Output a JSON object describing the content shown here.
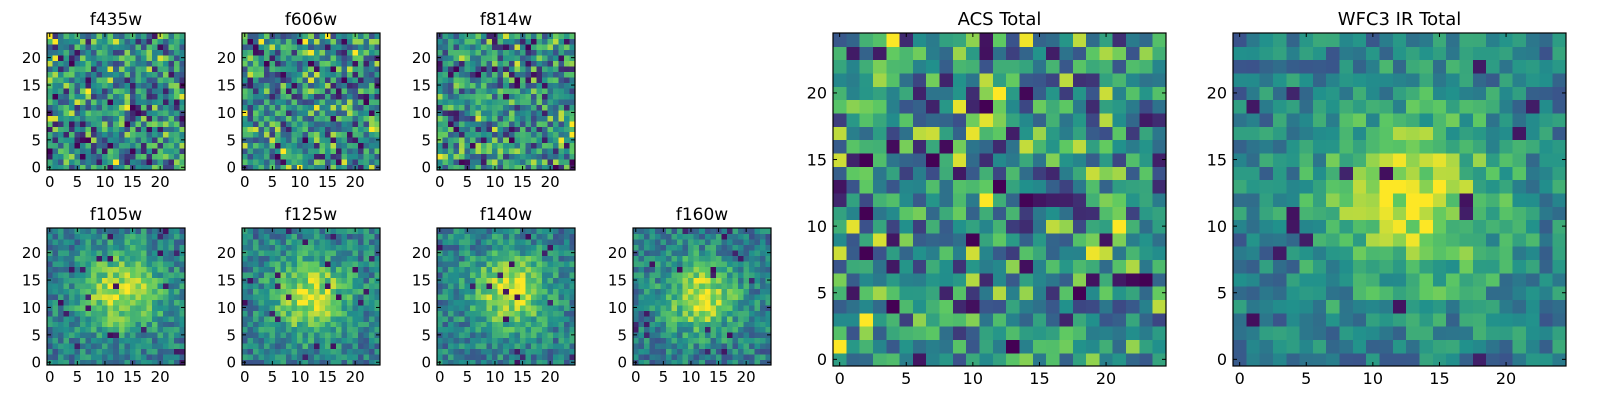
{
  "palette": [
    "#440154",
    "#3b528b",
    "#21918c",
    "#5ec962",
    "#fde725"
  ],
  "chart_data": [
    {
      "type": "heatmap",
      "title": "f435w",
      "grid_size": 25,
      "xlim": [
        0,
        25
      ],
      "ylim": [
        0,
        25
      ],
      "xticks": [
        0,
        5,
        10,
        15,
        20
      ],
      "yticks": [
        0,
        5,
        10,
        15,
        20
      ],
      "pattern": "noise",
      "seed": 11
    },
    {
      "type": "heatmap",
      "title": "f606w",
      "grid_size": 25,
      "xlim": [
        0,
        25
      ],
      "ylim": [
        0,
        25
      ],
      "xticks": [
        0,
        5,
        10,
        15,
        20
      ],
      "yticks": [
        0,
        5,
        10,
        15,
        20
      ],
      "pattern": "noise",
      "seed": 23
    },
    {
      "type": "heatmap",
      "title": "f814w",
      "grid_size": 25,
      "xlim": [
        0,
        25
      ],
      "ylim": [
        0,
        25
      ],
      "xticks": [
        0,
        5,
        10,
        15,
        20
      ],
      "yticks": [
        0,
        5,
        10,
        15,
        20
      ],
      "pattern": "noise",
      "seed": 37
    },
    {
      "type": "heatmap",
      "title": "f105w",
      "grid_size": 25,
      "xlim": [
        0,
        25
      ],
      "ylim": [
        0,
        25
      ],
      "xticks": [
        0,
        5,
        10,
        15,
        20
      ],
      "yticks": [
        0,
        5,
        10,
        15,
        20
      ],
      "pattern": "source",
      "source_center": [
        13,
        13
      ],
      "source_width": 5,
      "seed": 41
    },
    {
      "type": "heatmap",
      "title": "f125w",
      "grid_size": 25,
      "xlim": [
        0,
        25
      ],
      "ylim": [
        0,
        25
      ],
      "xticks": [
        0,
        5,
        10,
        15,
        20
      ],
      "yticks": [
        0,
        5,
        10,
        15,
        20
      ],
      "pattern": "source",
      "source_center": [
        12,
        12
      ],
      "source_width": 5,
      "seed": 53
    },
    {
      "type": "heatmap",
      "title": "f140w",
      "grid_size": 25,
      "xlim": [
        0,
        25
      ],
      "ylim": [
        0,
        25
      ],
      "xticks": [
        0,
        5,
        10,
        15,
        20
      ],
      "yticks": [
        0,
        5,
        10,
        15,
        20
      ],
      "pattern": "source",
      "source_center": [
        13,
        13
      ],
      "source_width": 5,
      "seed": 67
    },
    {
      "type": "heatmap",
      "title": "f160w",
      "grid_size": 25,
      "xlim": [
        0,
        25
      ],
      "ylim": [
        0,
        25
      ],
      "xticks": [
        0,
        5,
        10,
        15,
        20
      ],
      "yticks": [
        0,
        5,
        10,
        15,
        20
      ],
      "pattern": "source",
      "source_center": [
        12,
        12
      ],
      "source_width": 4.5,
      "seed": 79
    },
    {
      "type": "heatmap",
      "title": "ACS Total",
      "grid_size": 25,
      "xlim": [
        0,
        25
      ],
      "ylim": [
        0,
        25
      ],
      "xticks": [
        0,
        5,
        10,
        15,
        20
      ],
      "yticks": [
        0,
        5,
        10,
        15,
        20
      ],
      "pattern": "noise",
      "seed": 97
    },
    {
      "type": "heatmap",
      "title": "WFC3 IR Total",
      "grid_size": 25,
      "xlim": [
        0,
        25
      ],
      "ylim": [
        0,
        25
      ],
      "xticks": [
        0,
        5,
        10,
        15,
        20
      ],
      "yticks": [
        0,
        5,
        10,
        15,
        20
      ],
      "pattern": "source",
      "source_center": [
        13,
        12
      ],
      "source_width": 5,
      "seed": 101
    }
  ]
}
